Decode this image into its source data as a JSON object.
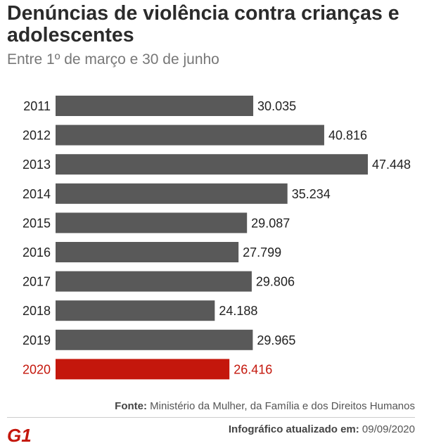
{
  "header": {
    "title": "Denúncias de violência contra crianças e adolescentes",
    "subtitle": "Entre 1º de março e 30 de junho"
  },
  "chart_data": {
    "type": "bar",
    "orientation": "horizontal",
    "title": "Denúncias de violência contra crianças e adolescentes",
    "subtitle": "Entre 1º de março e 30 de junho",
    "categories": [
      "2011",
      "2012",
      "2013",
      "2014",
      "2015",
      "2016",
      "2017",
      "2018",
      "2019",
      "2020"
    ],
    "values": [
      30035,
      40816,
      47448,
      35234,
      29087,
      27799,
      29806,
      24188,
      29965,
      26416
    ],
    "value_labels": [
      "30.035",
      "40.816",
      "47.448",
      "35.234",
      "29.087",
      "27.799",
      "29.806",
      "24.188",
      "29.965",
      "26.416"
    ],
    "highlight_index": 9,
    "xlim": [
      0,
      47448
    ],
    "xlabel": "",
    "ylabel": "",
    "grid": false,
    "legend": "none",
    "colors": {
      "bar": "#595959",
      "highlight": "#c4170c",
      "label": "#222222"
    }
  },
  "footer": {
    "source_label": "Fonte:",
    "source_text": "Ministério da Mulher, da Família e dos Direitos Humanos",
    "updated_label": "Infográfico atualizado em:",
    "updated_date": "09/09/2020",
    "logo_text": "G1",
    "logo_color": "#c4170c"
  }
}
